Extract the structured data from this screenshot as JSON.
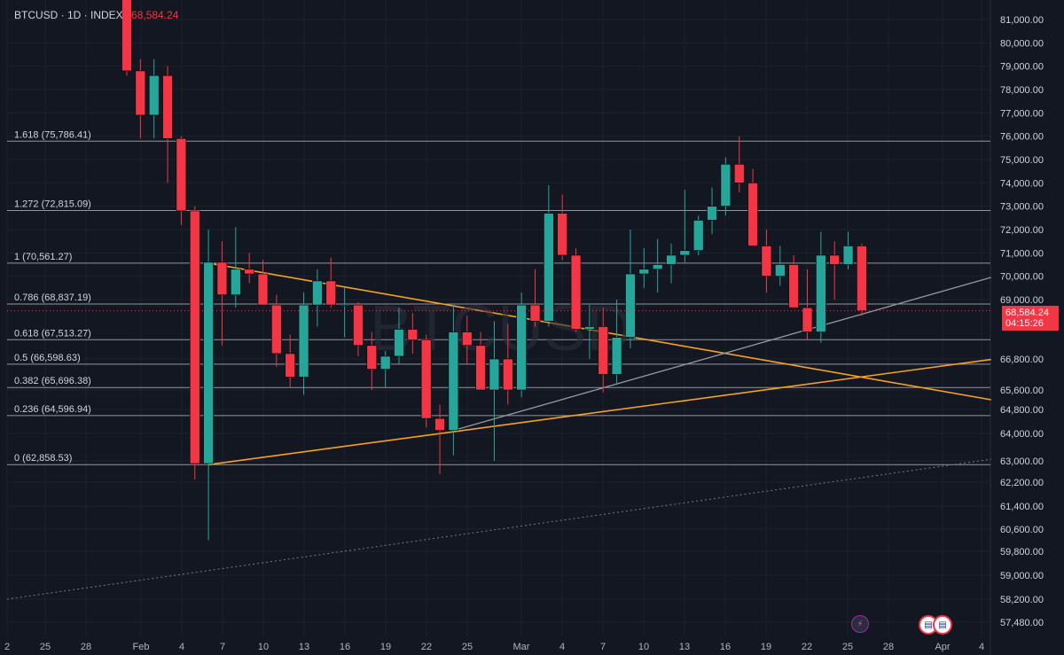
{
  "header": {
    "symbol_line": "BTCUSD · 1D · INDEX",
    "last_price": "68,584.24"
  },
  "watermark": "BTCUSD",
  "price_badge": {
    "price": "68,584.24",
    "countdown": "04:15:26"
  },
  "colors": {
    "background": "#131722",
    "up": "#26a69a",
    "down": "#f23645",
    "trendline": "#f7a21b",
    "fib": "#b2b5be",
    "grid": "#1e222d"
  },
  "icons": {
    "event_1": "lightning-icon",
    "event_2": "us-flag-icon",
    "event_3": "us-flag-icon"
  },
  "chart_data": {
    "type": "candlestick",
    "y_axis": {
      "ticks": [
        81000,
        80000,
        79000,
        78000,
        77000,
        76000,
        75000,
        74000,
        73000,
        72000,
        71000,
        70000,
        69000,
        66800,
        65600,
        64800,
        64000,
        63000,
        62200,
        61400,
        60600,
        59800,
        59000,
        58200,
        57480
      ],
      "tick_labels": [
        "81,000.00",
        "80,000.00",
        "79,000.00",
        "78,000.00",
        "77,000.00",
        "76,000.00",
        "75,000.00",
        "74,000.00",
        "73,000.00",
        "72,000.00",
        "71,000.00",
        "70,000.00",
        "69,000.00",
        "66,800.00",
        "65,600.00",
        "64,800.00",
        "64,000.00",
        "63,000.00",
        "62,200.00",
        "61,400.00",
        "60,600.00",
        "59,800.00",
        "59,000.00",
        "58,200.00",
        "57,480.00"
      ]
    },
    "x_axis": {
      "tick_labels": [
        "2",
        "25",
        "28",
        "Feb",
        "4",
        "7",
        "10",
        "13",
        "16",
        "19",
        "22",
        "25",
        "Mar",
        "4",
        "7",
        "10",
        "13",
        "16",
        "19",
        "22",
        "25",
        "28",
        "Apr",
        "4"
      ]
    },
    "fib_levels": [
      {
        "label": "1.618 (75,786.41)",
        "value": 75786.41
      },
      {
        "label": "1.272 (72,815.09)",
        "value": 72815.09
      },
      {
        "label": "1 (70,561.27)",
        "value": 70561.27
      },
      {
        "label": "0.786 (68,837.19)",
        "value": 68837.19
      },
      {
        "label": "0.618 (67,513.27)",
        "value": 67513.27
      },
      {
        "label": "0.5 (66,598.63)",
        "value": 66598.63
      },
      {
        "label": "0.382 (65,696.38)",
        "value": 65696.38
      },
      {
        "label": "0.236 (64,596.94)",
        "value": 64596.94
      },
      {
        "label": "0 (62,858.53)",
        "value": 62858.53
      }
    ],
    "candles": [
      {
        "o": 83500,
        "h": 84500,
        "l": 78600,
        "c": 78800
      },
      {
        "o": 78800,
        "h": 79300,
        "l": 75900,
        "c": 76900
      },
      {
        "o": 76900,
        "h": 79300,
        "l": 75900,
        "c": 78600
      },
      {
        "o": 78600,
        "h": 79000,
        "l": 74000,
        "c": 75900
      },
      {
        "o": 75900,
        "h": 76000,
        "l": 72200,
        "c": 72800
      },
      {
        "o": 72800,
        "h": 73000,
        "l": 62300,
        "c": 62900
      },
      {
        "o": 62900,
        "h": 72000,
        "l": 60200,
        "c": 70600
      },
      {
        "o": 70600,
        "h": 71500,
        "l": 67300,
        "c": 69200
      },
      {
        "o": 69200,
        "h": 72100,
        "l": 68700,
        "c": 70300
      },
      {
        "o": 70300,
        "h": 71000,
        "l": 69700,
        "c": 70100
      },
      {
        "o": 70100,
        "h": 70700,
        "l": 68800,
        "c": 68800
      },
      {
        "o": 68800,
        "h": 69200,
        "l": 66500,
        "c": 67000
      },
      {
        "o": 67000,
        "h": 67700,
        "l": 65700,
        "c": 66100
      },
      {
        "o": 66100,
        "h": 69300,
        "l": 65400,
        "c": 68800
      },
      {
        "o": 68800,
        "h": 70300,
        "l": 68000,
        "c": 69800
      },
      {
        "o": 69800,
        "h": 70800,
        "l": 68700,
        "c": 68800
      },
      {
        "o": 68800,
        "h": 69500,
        "l": 67600,
        "c": 68800
      },
      {
        "o": 68800,
        "h": 68900,
        "l": 66900,
        "c": 67300
      },
      {
        "o": 67300,
        "h": 67800,
        "l": 65600,
        "c": 66400
      },
      {
        "o": 66400,
        "h": 67100,
        "l": 65700,
        "c": 66900
      },
      {
        "o": 66900,
        "h": 68700,
        "l": 66600,
        "c": 67900
      },
      {
        "o": 67900,
        "h": 68500,
        "l": 67000,
        "c": 67500
      },
      {
        "o": 67500,
        "h": 67700,
        "l": 64200,
        "c": 64500
      },
      {
        "o": 64500,
        "h": 65000,
        "l": 62500,
        "c": 64100
      },
      {
        "o": 64100,
        "h": 68800,
        "l": 63200,
        "c": 67800
      },
      {
        "o": 67800,
        "h": 68400,
        "l": 66600,
        "c": 67300
      },
      {
        "o": 67300,
        "h": 67800,
        "l": 65600,
        "c": 65600
      },
      {
        "o": 65600,
        "h": 68200,
        "l": 63000,
        "c": 66800
      },
      {
        "o": 66800,
        "h": 68100,
        "l": 65000,
        "c": 65600
      },
      {
        "o": 65600,
        "h": 69300,
        "l": 65300,
        "c": 68800
      },
      {
        "o": 68800,
        "h": 70300,
        "l": 68000,
        "c": 68200
      },
      {
        "o": 68200,
        "h": 73900,
        "l": 68000,
        "c": 72700
      },
      {
        "o": 72700,
        "h": 73500,
        "l": 70700,
        "c": 70900
      },
      {
        "o": 70900,
        "h": 71200,
        "l": 67800,
        "c": 67900
      },
      {
        "o": 67900,
        "h": 68800,
        "l": 66800,
        "c": 68000
      },
      {
        "o": 68000,
        "h": 68700,
        "l": 65500,
        "c": 66200
      },
      {
        "o": 66200,
        "h": 69000,
        "l": 65800,
        "c": 67600
      },
      {
        "o": 67600,
        "h": 72000,
        "l": 67200,
        "c": 70100
      },
      {
        "o": 70100,
        "h": 71200,
        "l": 69500,
        "c": 70300
      },
      {
        "o": 70300,
        "h": 71600,
        "l": 69300,
        "c": 70500
      },
      {
        "o": 70500,
        "h": 71400,
        "l": 69700,
        "c": 70900
      },
      {
        "o": 70900,
        "h": 73700,
        "l": 70600,
        "c": 71100
      },
      {
        "o": 71100,
        "h": 72600,
        "l": 70900,
        "c": 72400
      },
      {
        "o": 72400,
        "h": 73800,
        "l": 71800,
        "c": 73000
      },
      {
        "o": 73000,
        "h": 75100,
        "l": 72600,
        "c": 74800
      },
      {
        "o": 74800,
        "h": 76000,
        "l": 73600,
        "c": 74000
      },
      {
        "o": 74000,
        "h": 74600,
        "l": 71300,
        "c": 71300
      },
      {
        "o": 71300,
        "h": 72000,
        "l": 69300,
        "c": 70000
      },
      {
        "o": 70000,
        "h": 71300,
        "l": 69600,
        "c": 70500
      },
      {
        "o": 70500,
        "h": 70900,
        "l": 68700,
        "c": 68700
      },
      {
        "o": 68700,
        "h": 70300,
        "l": 67500,
        "c": 67800
      },
      {
        "o": 67800,
        "h": 71900,
        "l": 67400,
        "c": 70900
      },
      {
        "o": 70900,
        "h": 71500,
        "l": 69000,
        "c": 70500
      },
      {
        "o": 70500,
        "h": 71900,
        "l": 70300,
        "c": 71300
      },
      {
        "o": 71300,
        "h": 71400,
        "l": 68400,
        "c": 68584.24
      }
    ]
  }
}
